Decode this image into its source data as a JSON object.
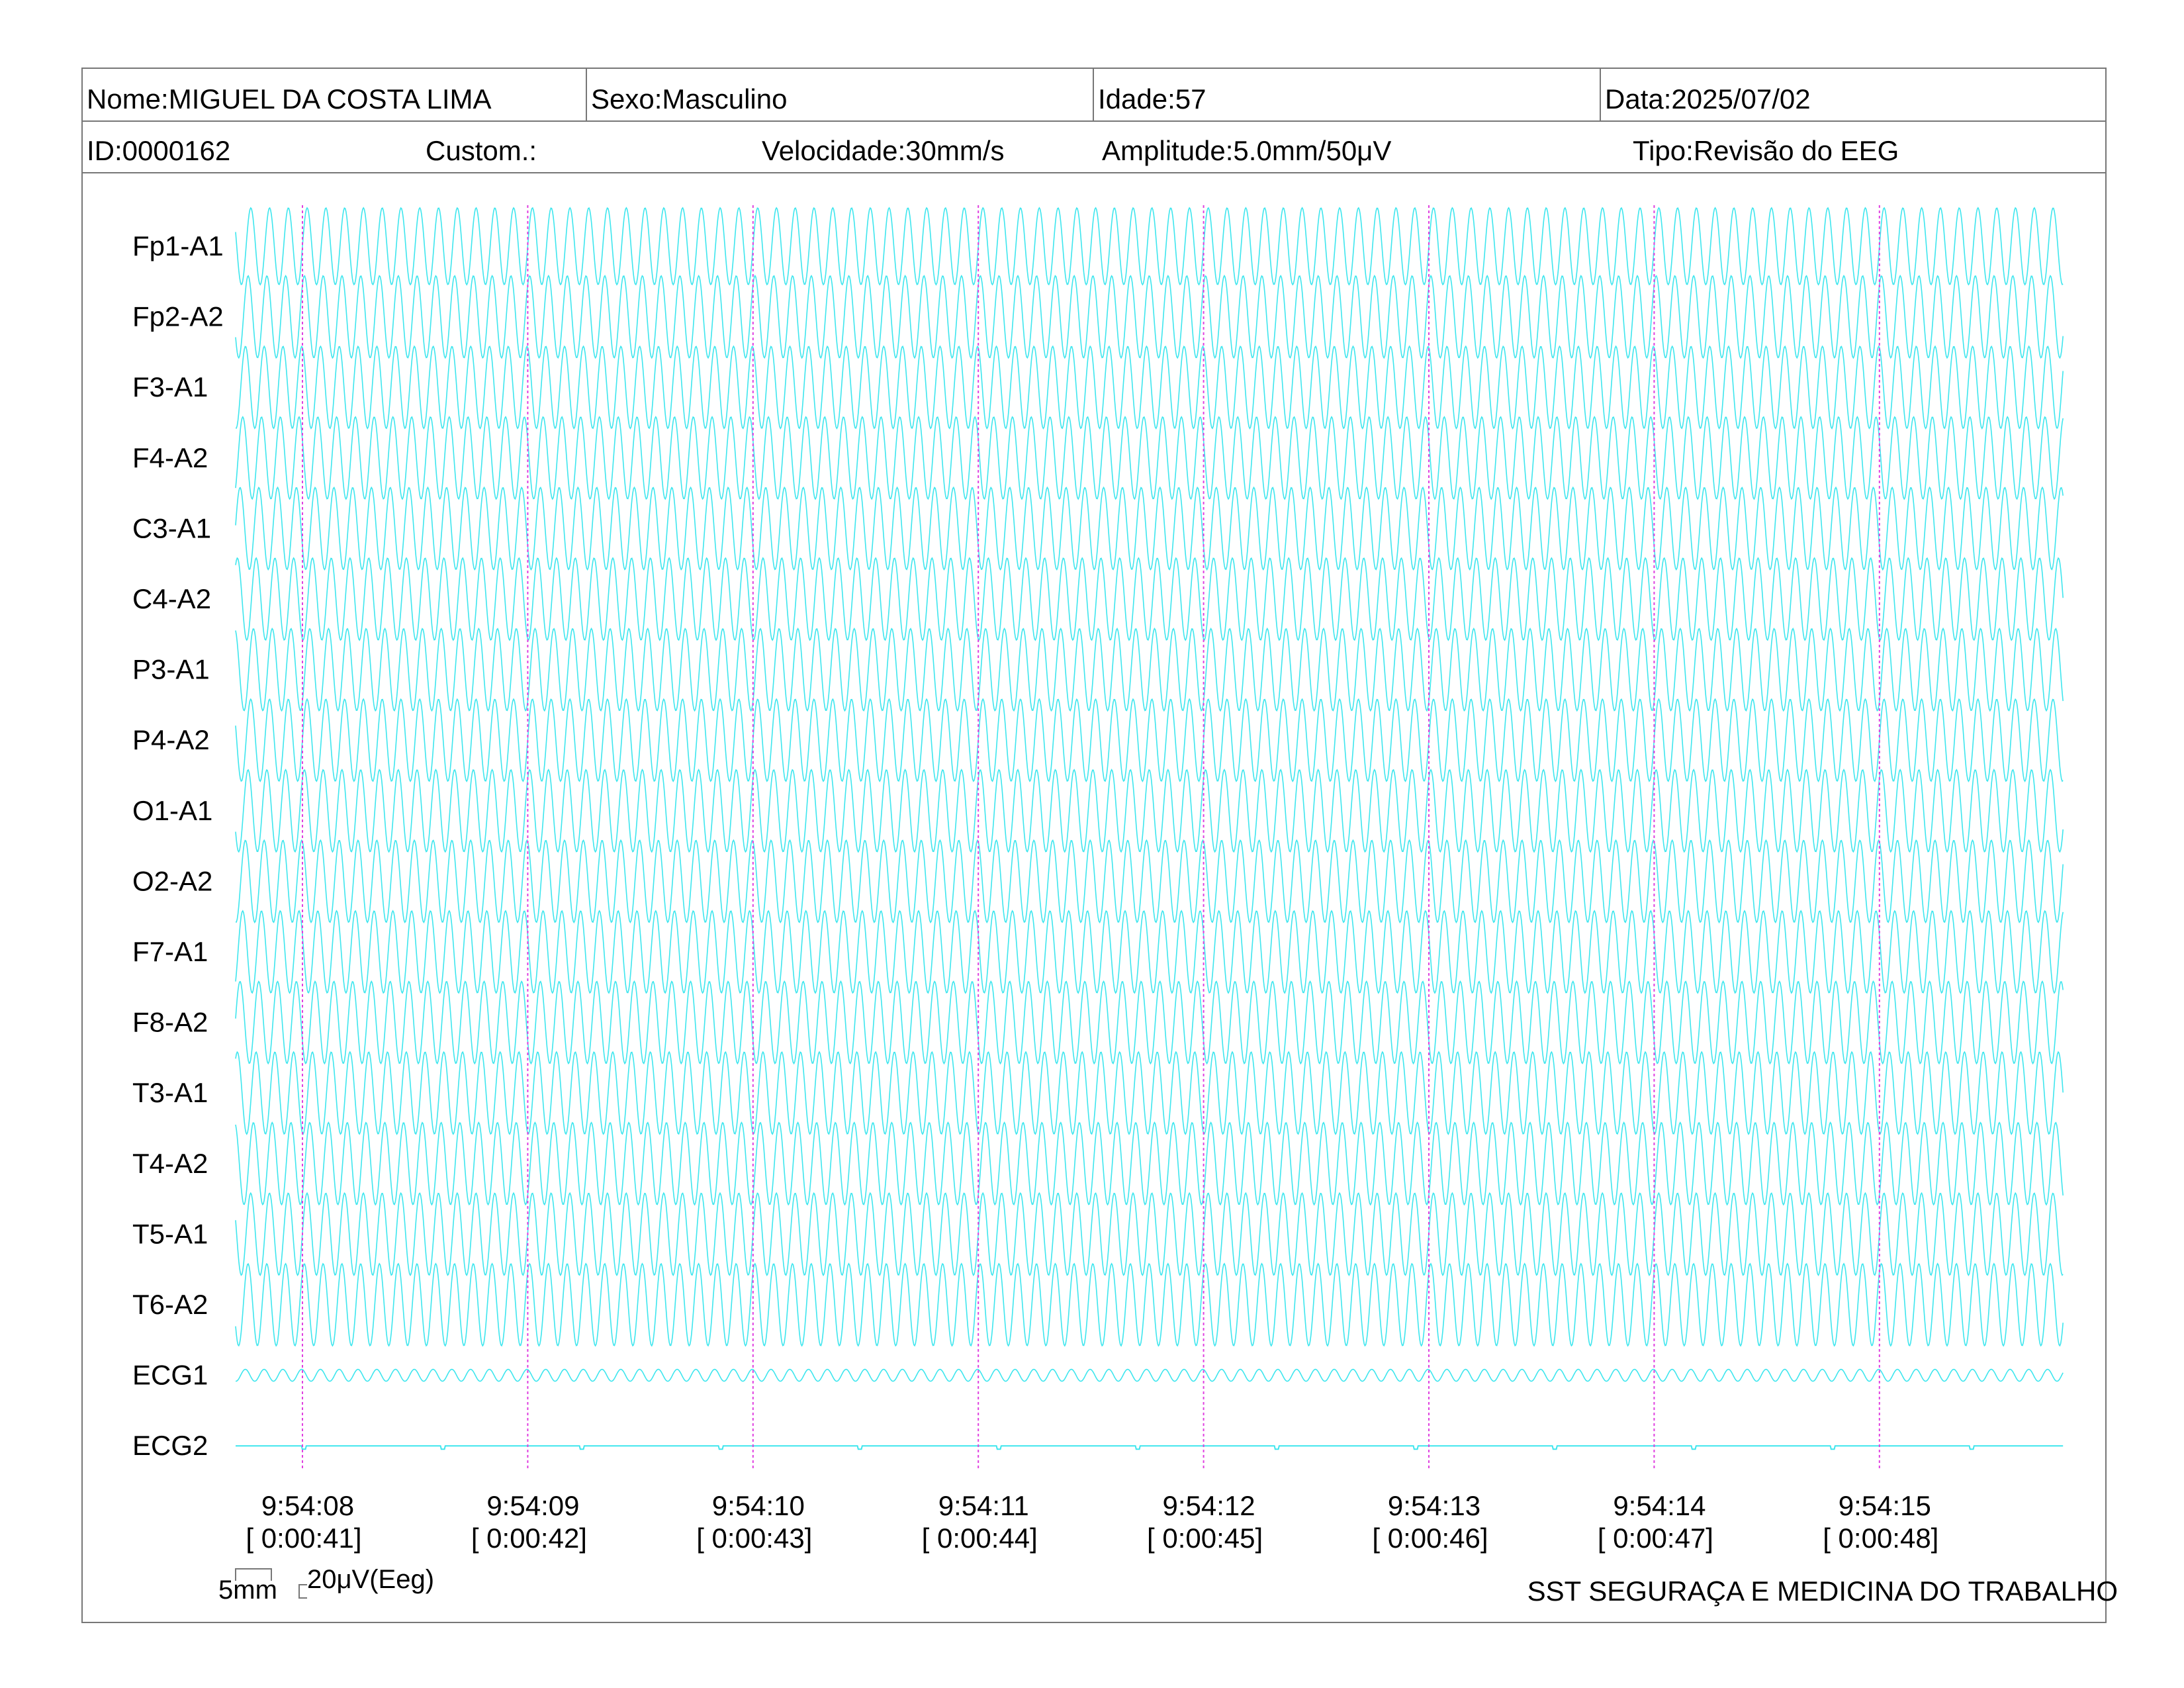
{
  "header": {
    "name": "Nome:MIGUEL DA COSTA LIMA",
    "sex": "Sexo:Masculino",
    "age": "Idade:57",
    "date": "Data:2025/07/02",
    "id": "ID:0000162",
    "custom": "Custom.:",
    "speed": "Velocidade:30mm/s",
    "amplitude": "Amplitude:5.0mm/50μV",
    "type": "Tipo:Revisão do EEG"
  },
  "scale": {
    "mm_label": "5mm",
    "uv_label": "20μV(Eeg)"
  },
  "footer": {
    "company": "SST SEGURAÇA E MEDICINA DO TRABALHO"
  },
  "colors": {
    "trace": "#3ee6ee",
    "marker": "#e040e0",
    "border": "#777777"
  },
  "chart_data": {
    "type": "line",
    "title": "",
    "channels": [
      "Fp1-A1",
      "Fp2-A2",
      "F3-A1",
      "F4-A2",
      "C3-A1",
      "C4-A2",
      "P3-A1",
      "P4-A2",
      "O1-A1",
      "O2-A2",
      "F7-A1",
      "F8-A2",
      "T3-A1",
      "T4-A2",
      "T5-A1",
      "T6-A2",
      "ECG1",
      "ECG2"
    ],
    "time_marks": [
      {
        "clock": "9:54:08",
        "elapsed": "[ 0:00:41]"
      },
      {
        "clock": "9:54:09",
        "elapsed": "[ 0:00:42]"
      },
      {
        "clock": "9:54:10",
        "elapsed": "[ 0:00:43]"
      },
      {
        "clock": "9:54:11",
        "elapsed": "[ 0:00:44]"
      },
      {
        "clock": "9:54:12",
        "elapsed": "[ 0:00:45]"
      },
      {
        "clock": "9:54:13",
        "elapsed": "[ 0:00:46]"
      },
      {
        "clock": "9:54:14",
        "elapsed": "[ 0:00:47]"
      },
      {
        "clock": "9:54:15",
        "elapsed": "[ 0:00:48]"
      }
    ],
    "duration_s": 8.1,
    "eeg_frequency_hz": 12,
    "ecg1_frequency_hz": 12,
    "grid": false
  }
}
